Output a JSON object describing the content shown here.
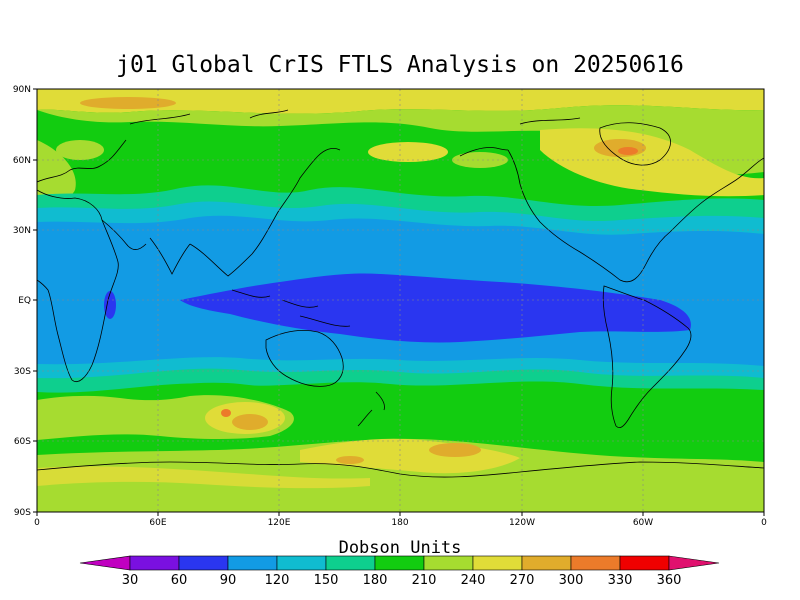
{
  "title": "j01 Global CrIS FTLS Analysis on 20250616",
  "lat_ticks": [
    "90N",
    "60N",
    "30N",
    "EQ",
    "30S",
    "60S",
    "90S"
  ],
  "lon_ticks": [
    "0",
    "60E",
    "120E",
    "180",
    "120W",
    "60W",
    "0"
  ],
  "colorbar": {
    "units": "Dobson Units",
    "levels": [
      30,
      60,
      90,
      120,
      150,
      180,
      210,
      240,
      270,
      300,
      330,
      360
    ],
    "colors": [
      "#c000c0",
      "#7a10e0",
      "#2a36f0",
      "#129be4",
      "#10bcd0",
      "#0ecf8e",
      "#12cc10",
      "#a6dc30",
      "#e0dc38",
      "#e0ac2c",
      "#ec7b2a",
      "#f00000",
      "#e0106e"
    ]
  }
}
